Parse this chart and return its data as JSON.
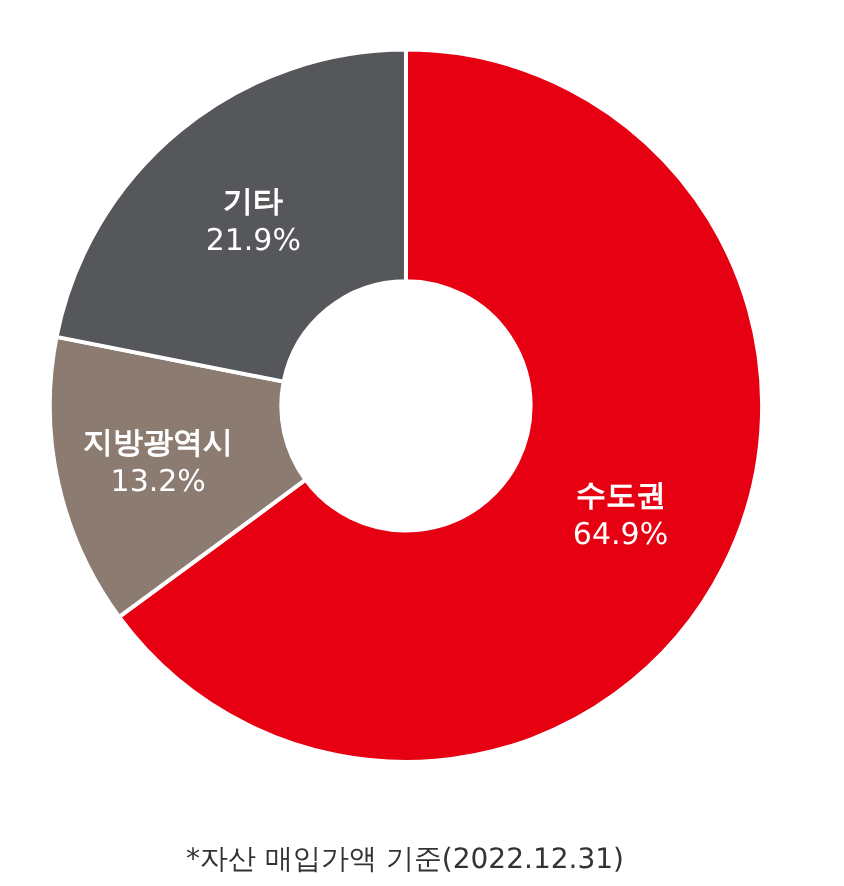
{
  "chart_data": {
    "type": "donut",
    "categories": [
      "수도권",
      "지방광역시",
      "기타"
    ],
    "values": [
      64.9,
      13.2,
      21.9
    ],
    "value_labels": [
      "64.9%",
      "13.2%",
      "21.9%"
    ],
    "colors": [
      "#e60012",
      "#8c7b70",
      "#55575a"
    ],
    "legend": false,
    "annotations": [
      "*자산 매입가액 기준(2022.12.31)"
    ]
  }
}
